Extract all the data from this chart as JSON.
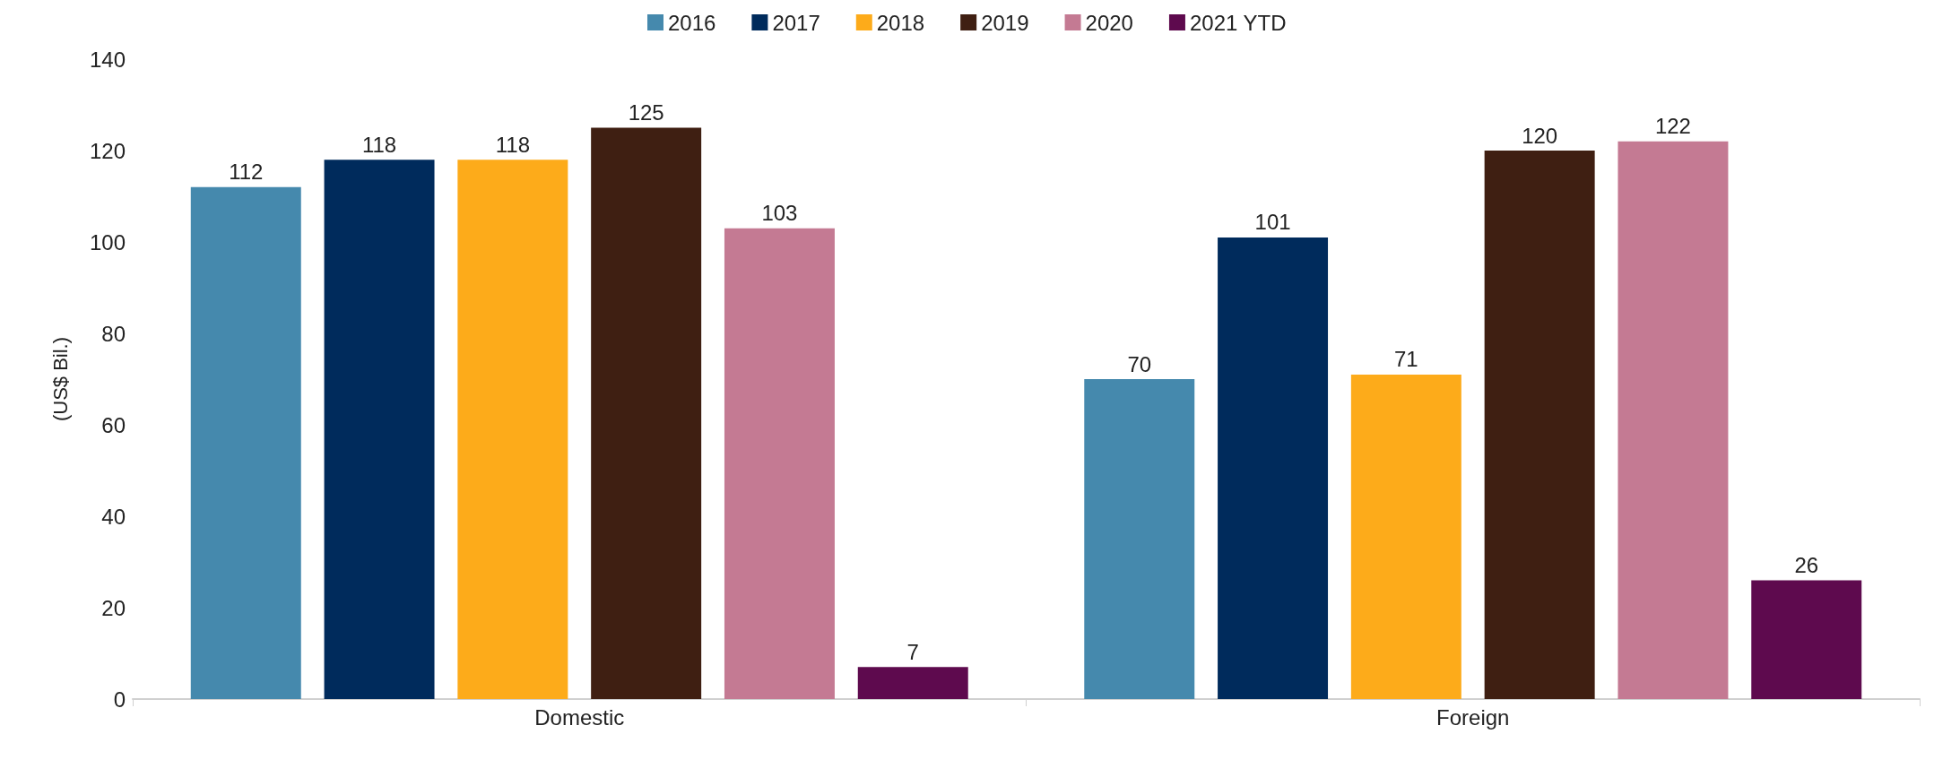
{
  "chart_data": {
    "type": "bar",
    "ylabel": "(US$ Bil.)",
    "categories": [
      "Domestic",
      "Foreign"
    ],
    "series": [
      {
        "name": "2016",
        "color": "#4589ad",
        "values": [
          112,
          70
        ]
      },
      {
        "name": "2017",
        "color": "#002b5c",
        "values": [
          118,
          101
        ]
      },
      {
        "name": "2018",
        "color": "#fdab1a",
        "values": [
          118,
          71
        ]
      },
      {
        "name": "2019",
        "color": "#3f1f12",
        "values": [
          125,
          120
        ]
      },
      {
        "name": "2020",
        "color": "#c47a93",
        "values": [
          103,
          122
        ]
      },
      {
        "name": "2021 YTD",
        "color": "#5e0a4e",
        "values": [
          7,
          26
        ]
      }
    ],
    "ylim": [
      0,
      140
    ],
    "yticks": [
      0,
      20,
      40,
      60,
      80,
      100,
      120,
      140
    ],
    "grid": false,
    "legend": "top",
    "data_labels": true
  }
}
